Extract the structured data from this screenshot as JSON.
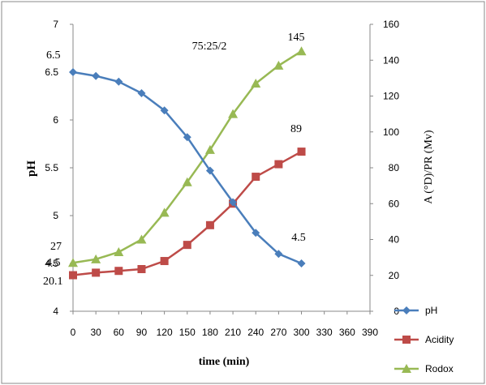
{
  "chart_data": {
    "type": "line",
    "title": "75:25/2",
    "xlabel": "time (min)",
    "ylabel_left": "pH",
    "ylabel_right": "A (°D)/PR (Mv)",
    "x_ticks": [
      0,
      30,
      60,
      90,
      120,
      150,
      180,
      210,
      240,
      270,
      300,
      330,
      360,
      390
    ],
    "xlim": [
      0,
      390
    ],
    "ylim_left": [
      4,
      7
    ],
    "y_ticks_left": [
      "4",
      "4.5",
      "5",
      "5.5",
      "6",
      "6.5",
      "7"
    ],
    "ylim_right": [
      0,
      160
    ],
    "y_ticks_right": [
      "0",
      "20",
      "40",
      "60",
      "80",
      "100",
      "120",
      "140",
      "160"
    ],
    "grid": false,
    "legend_position": "bottom-right",
    "series": [
      {
        "name": "pH",
        "axis": "left",
        "color": "#4a7ebb",
        "marker": "diamond",
        "x": [
          0,
          30,
          60,
          90,
          120,
          150,
          180,
          210,
          240,
          270,
          300
        ],
        "values": [
          6.5,
          6.46,
          6.4,
          6.28,
          6.1,
          5.82,
          5.47,
          5.14,
          4.82,
          4.6,
          4.5
        ]
      },
      {
        "name": "Acidity",
        "axis": "right",
        "color": "#be4b48",
        "marker": "square",
        "x": [
          0,
          30,
          60,
          90,
          120,
          150,
          180,
          210,
          240,
          270,
          300
        ],
        "values": [
          20.1,
          21.5,
          22.5,
          23.5,
          28,
          37,
          48,
          60,
          75,
          82,
          89
        ]
      },
      {
        "name": "Rodox",
        "axis": "right",
        "color": "#98b954",
        "marker": "triangle",
        "x": [
          0,
          30,
          60,
          90,
          120,
          150,
          180,
          210,
          240,
          270,
          300
        ],
        "values": [
          27,
          29,
          33,
          40,
          55,
          72,
          90,
          110,
          127,
          137,
          145
        ]
      }
    ],
    "annotations": [
      {
        "text": "6.5",
        "anchor": "ylabel-left",
        "value": 6.5
      },
      {
        "text": "4.5",
        "anchor": "ylabel-left",
        "value": 4.5
      },
      {
        "text": "27",
        "anchor": "ylabel-left",
        "value": 27
      },
      {
        "text": "20.1",
        "anchor": "ylabel-left",
        "value": 20.1
      },
      {
        "text": "145",
        "anchor": "point",
        "series": 2,
        "index": 10
      },
      {
        "text": "89",
        "anchor": "point",
        "series": 1,
        "index": 10
      },
      {
        "text": "4.5",
        "anchor": "point",
        "series": 0,
        "index": 10
      }
    ]
  }
}
